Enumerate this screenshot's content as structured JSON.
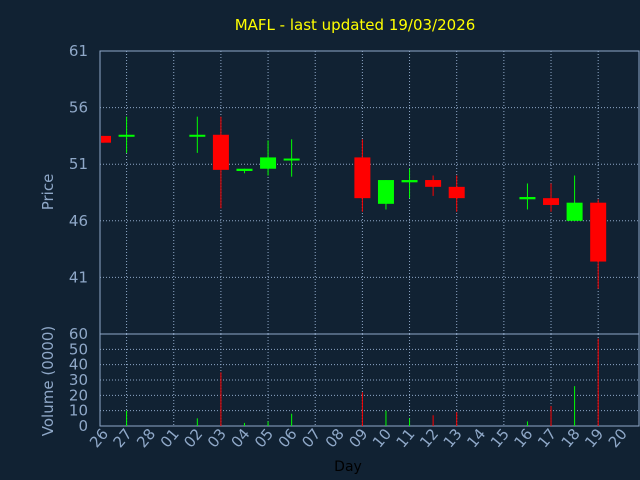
{
  "chart_data": {
    "type": "candlestick",
    "title": "MAFL - last updated 19/03/2026",
    "xlabel": "Day",
    "price_panel": {
      "ylabel": "Price",
      "ylim": [
        36,
        61
      ],
      "yticks": [
        61,
        56,
        51,
        46,
        41
      ]
    },
    "volume_panel": {
      "ylabel": "Volume (0000)",
      "ylim": [
        0,
        60
      ],
      "yticks": [
        60,
        50,
        40,
        30,
        20,
        10,
        0
      ]
    },
    "x_labels": [
      "26",
      "27",
      "28",
      "01",
      "02",
      "03",
      "04",
      "05",
      "06",
      "07",
      "08",
      "09",
      "10",
      "11",
      "12",
      "13",
      "14",
      "15",
      "16",
      "17",
      "18",
      "19",
      "20"
    ],
    "candles": [
      {
        "day": "26",
        "open": 53.5,
        "high": 53.5,
        "low": 52.9,
        "close": 52.9,
        "volume": 0
      },
      {
        "day": "27",
        "open": 53.6,
        "high": 55.2,
        "low": 52.0,
        "close": 53.6,
        "volume": 10
      },
      {
        "day": "28",
        "open": null,
        "high": null,
        "low": null,
        "close": null,
        "volume": 0
      },
      {
        "day": "01",
        "open": null,
        "high": null,
        "low": null,
        "close": null,
        "volume": 0
      },
      {
        "day": "02",
        "open": 53.6,
        "high": 55.2,
        "low": 52.0,
        "close": 53.6,
        "volume": 5
      },
      {
        "day": "03",
        "open": 53.6,
        "high": 55.2,
        "low": 47.1,
        "close": 50.5,
        "volume": 35
      },
      {
        "day": "04",
        "open": 50.4,
        "high": 50.6,
        "low": 50.2,
        "close": 50.6,
        "volume": 2
      },
      {
        "day": "05",
        "open": 50.6,
        "high": 53.1,
        "low": 50.0,
        "close": 51.6,
        "volume": 3
      },
      {
        "day": "06",
        "open": 51.4,
        "high": 53.2,
        "low": 49.9,
        "close": 51.5,
        "volume": 8
      },
      {
        "day": "07",
        "open": null,
        "high": null,
        "low": null,
        "close": null,
        "volume": 0
      },
      {
        "day": "08",
        "open": null,
        "high": null,
        "low": null,
        "close": null,
        "volume": 0
      },
      {
        "day": "09",
        "open": 51.6,
        "high": 53.2,
        "low": 46.8,
        "close": 48.0,
        "volume": 22
      },
      {
        "day": "10",
        "open": 47.5,
        "high": 49.6,
        "low": 47.0,
        "close": 49.6,
        "volume": 10
      },
      {
        "day": "11",
        "open": 49.4,
        "high": 50.6,
        "low": 48.0,
        "close": 49.6,
        "volume": 5
      },
      {
        "day": "12",
        "open": 49.6,
        "high": 50.0,
        "low": 48.2,
        "close": 49.0,
        "volume": 7
      },
      {
        "day": "13",
        "open": 49.0,
        "high": 50.0,
        "low": 46.8,
        "close": 48.0,
        "volume": 9
      },
      {
        "day": "14",
        "open": null,
        "high": null,
        "low": null,
        "close": null,
        "volume": 0
      },
      {
        "day": "15",
        "open": null,
        "high": null,
        "low": null,
        "close": null,
        "volume": 0
      },
      {
        "day": "16",
        "open": 47.9,
        "high": 49.3,
        "low": 47.0,
        "close": 48.1,
        "volume": 3
      },
      {
        "day": "17",
        "open": 48.0,
        "high": 49.3,
        "low": 46.8,
        "close": 47.4,
        "volume": 13
      },
      {
        "day": "18",
        "open": 46.0,
        "high": 50.0,
        "low": 46.0,
        "close": 47.6,
        "volume": 26
      },
      {
        "day": "19",
        "open": 47.6,
        "high": 47.9,
        "low": 40.0,
        "close": 42.4,
        "volume": 57
      }
    ],
    "grid": true,
    "colors": {
      "background": "#112233",
      "plot": "#112233",
      "title": "#ffff00",
      "text": "#8fa8c8",
      "grid": "#8fa8c8",
      "up": "#00ff00",
      "down": "#ff0000",
      "axis_frame": "#8fa8c8"
    }
  }
}
